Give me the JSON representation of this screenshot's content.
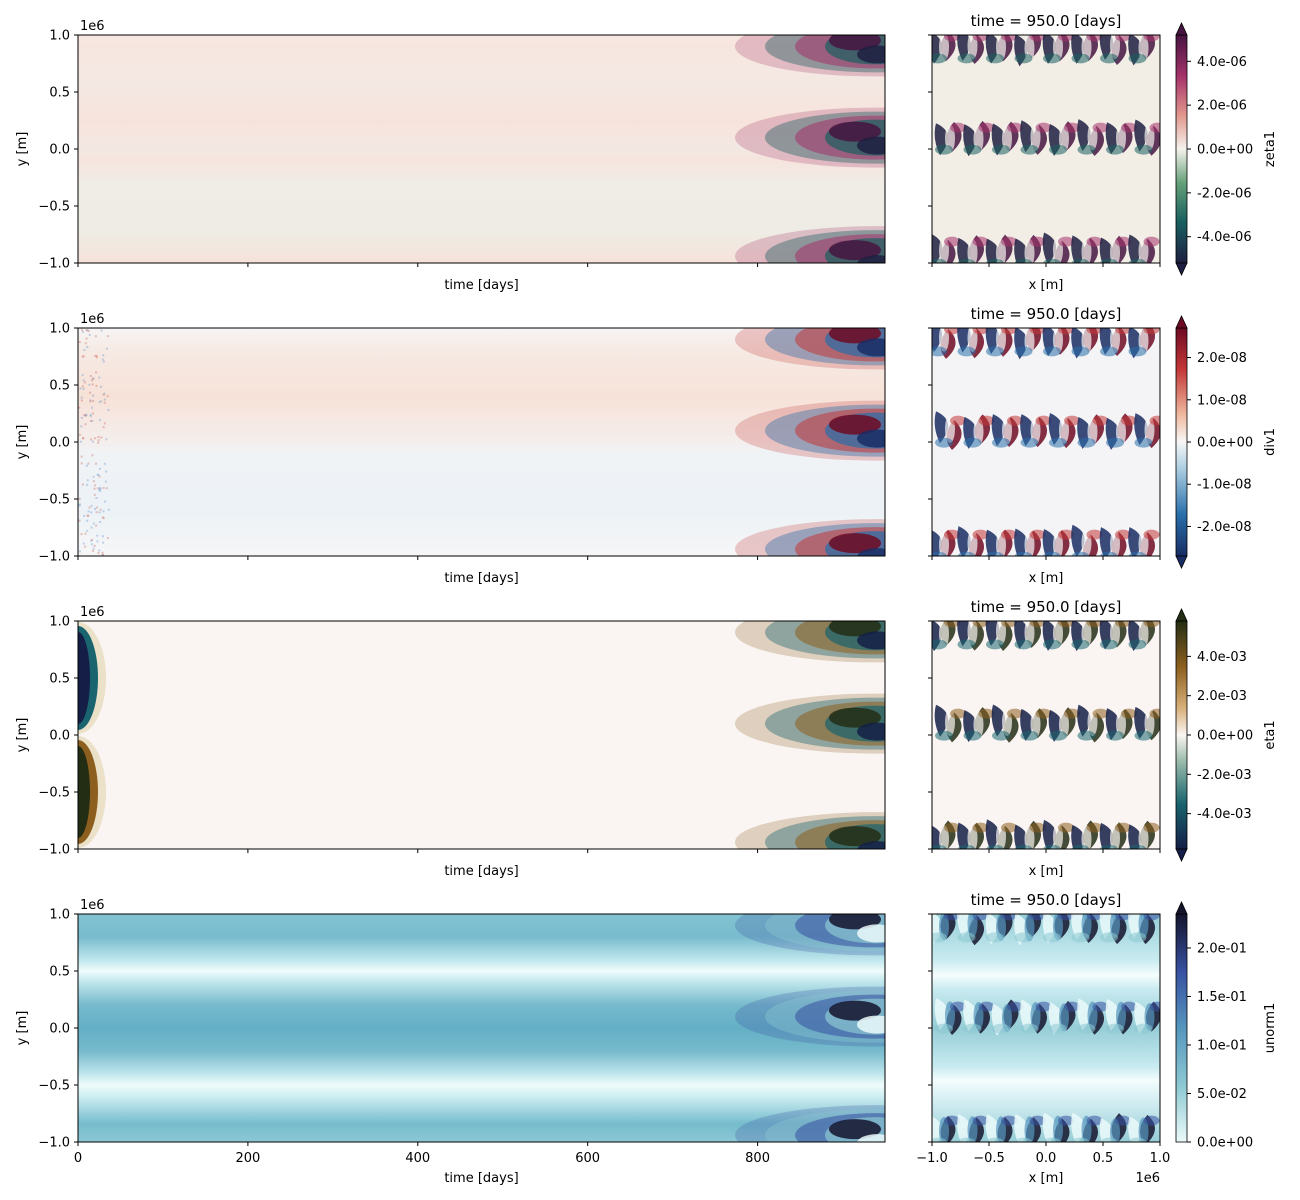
{
  "chart_data": [
    {
      "type": "heatmap",
      "variable": "zeta1",
      "hovmoller": {
        "xlabel": "time [days]",
        "ylabel": "y [m]",
        "xlim": [
          0,
          950
        ],
        "ylim": [
          -1.0,
          1.0
        ],
        "xticks": [
          0,
          200,
          400,
          600,
          800
        ],
        "yticks": [
          "1.0",
          "0.5",
          "0.0",
          "−0.5",
          "−1.0"
        ],
        "y_offset_text": "1e6",
        "show_x_ticklabels": false
      },
      "snapshot": {
        "title": "time = 950.0 [days]",
        "xlabel": "x [m]",
        "xlim": [
          -1.0,
          1.0
        ],
        "show_x_ticklabels": false
      },
      "colorbar": {
        "label": "zeta1",
        "ticks": [
          "4.0e-06",
          "2.0e-06",
          "0.0e+00",
          "-2.0e-06",
          "-4.0e-06"
        ],
        "tick_values": [
          4e-06,
          2e-06,
          0.0,
          -2e-06,
          -4e-06
        ],
        "range": [
          -5.2e-06,
          5.2e-06
        ],
        "extend": "both",
        "colormap": "curl (diverging green–white–magenta)"
      }
    },
    {
      "type": "heatmap",
      "variable": "div1",
      "hovmoller": {
        "xlabel": "time [days]",
        "ylabel": "y [m]",
        "xlim": [
          0,
          950
        ],
        "ylim": [
          -1.0,
          1.0
        ],
        "xticks": [
          0,
          200,
          400,
          600,
          800
        ],
        "yticks": [
          "1.0",
          "0.5",
          "0.0",
          "−0.5",
          "−1.0"
        ],
        "y_offset_text": "1e6",
        "show_x_ticklabels": false
      },
      "snapshot": {
        "title": "time = 950.0 [days]",
        "xlabel": "x [m]",
        "xlim": [
          -1.0,
          1.0
        ],
        "show_x_ticklabels": false
      },
      "colorbar": {
        "label": "div1",
        "ticks": [
          "2.0e-08",
          "1.0e-08",
          "0.0e+00",
          "-1.0e-08",
          "-2.0e-08"
        ],
        "tick_values": [
          2e-08,
          1e-08,
          0.0,
          -1e-08,
          -2e-08
        ],
        "range": [
          -2.7e-08,
          2.7e-08
        ],
        "extend": "both",
        "colormap": "RdBu_r (diverging blue–white–red)"
      }
    },
    {
      "type": "heatmap",
      "variable": "eta1",
      "hovmoller": {
        "xlabel": "time [days]",
        "ylabel": "y [m]",
        "xlim": [
          0,
          950
        ],
        "ylim": [
          -1.0,
          1.0
        ],
        "xticks": [
          0,
          200,
          400,
          600,
          800
        ],
        "yticks": [
          "1.0",
          "0.5",
          "0.0",
          "−0.5",
          "−1.0"
        ],
        "y_offset_text": "1e6",
        "show_x_ticklabels": false
      },
      "snapshot": {
        "title": "time = 950.0 [days]",
        "xlabel": "x [m]",
        "xlim": [
          -1.0,
          1.0
        ],
        "show_x_ticklabels": false
      },
      "colorbar": {
        "label": "eta1",
        "ticks": [
          "4.0e-03",
          "2.0e-03",
          "0.0e+00",
          "-2.0e-03",
          "-4.0e-03"
        ],
        "tick_values": [
          0.004,
          0.002,
          0.0,
          -0.002,
          -0.004
        ],
        "range": [
          -0.0058,
          0.0058
        ],
        "extend": "both",
        "colormap": "tarn/delta (diverging teal–white–brown)"
      }
    },
    {
      "type": "heatmap",
      "variable": "unorm1",
      "hovmoller": {
        "xlabel": "time [days]",
        "ylabel": "y [m]",
        "xlim": [
          0,
          950
        ],
        "ylim": [
          -1.0,
          1.0
        ],
        "xticks": [
          0,
          200,
          400,
          600,
          800
        ],
        "yticks": [
          "1.0",
          "0.5",
          "0.0",
          "−0.5",
          "−1.0"
        ],
        "y_offset_text": "1e6",
        "show_x_ticklabels": true
      },
      "snapshot": {
        "title": "time = 950.0 [days]",
        "xlabel": "x [m]",
        "xlim": [
          -1.0,
          1.0
        ],
        "xticks": [
          -1.0,
          -0.5,
          0.0,
          0.5,
          1.0
        ],
        "xticklabels": [
          "−1.0",
          "−0.5",
          "0.0",
          "0.5",
          "1.0"
        ],
        "x_offset_text": "1e6",
        "show_x_ticklabels": true
      },
      "colorbar": {
        "label": "unorm1",
        "ticks": [
          "2.0e-01",
          "1.5e-01",
          "1.0e-01",
          "5.0e-02",
          "0.0e+00"
        ],
        "tick_values": [
          0.2,
          0.15,
          0.1,
          0.05,
          0.0
        ],
        "range": [
          0.0,
          0.235
        ],
        "extend": "max",
        "colormap": "ice_r (sequential white–blue–navy)"
      }
    }
  ]
}
